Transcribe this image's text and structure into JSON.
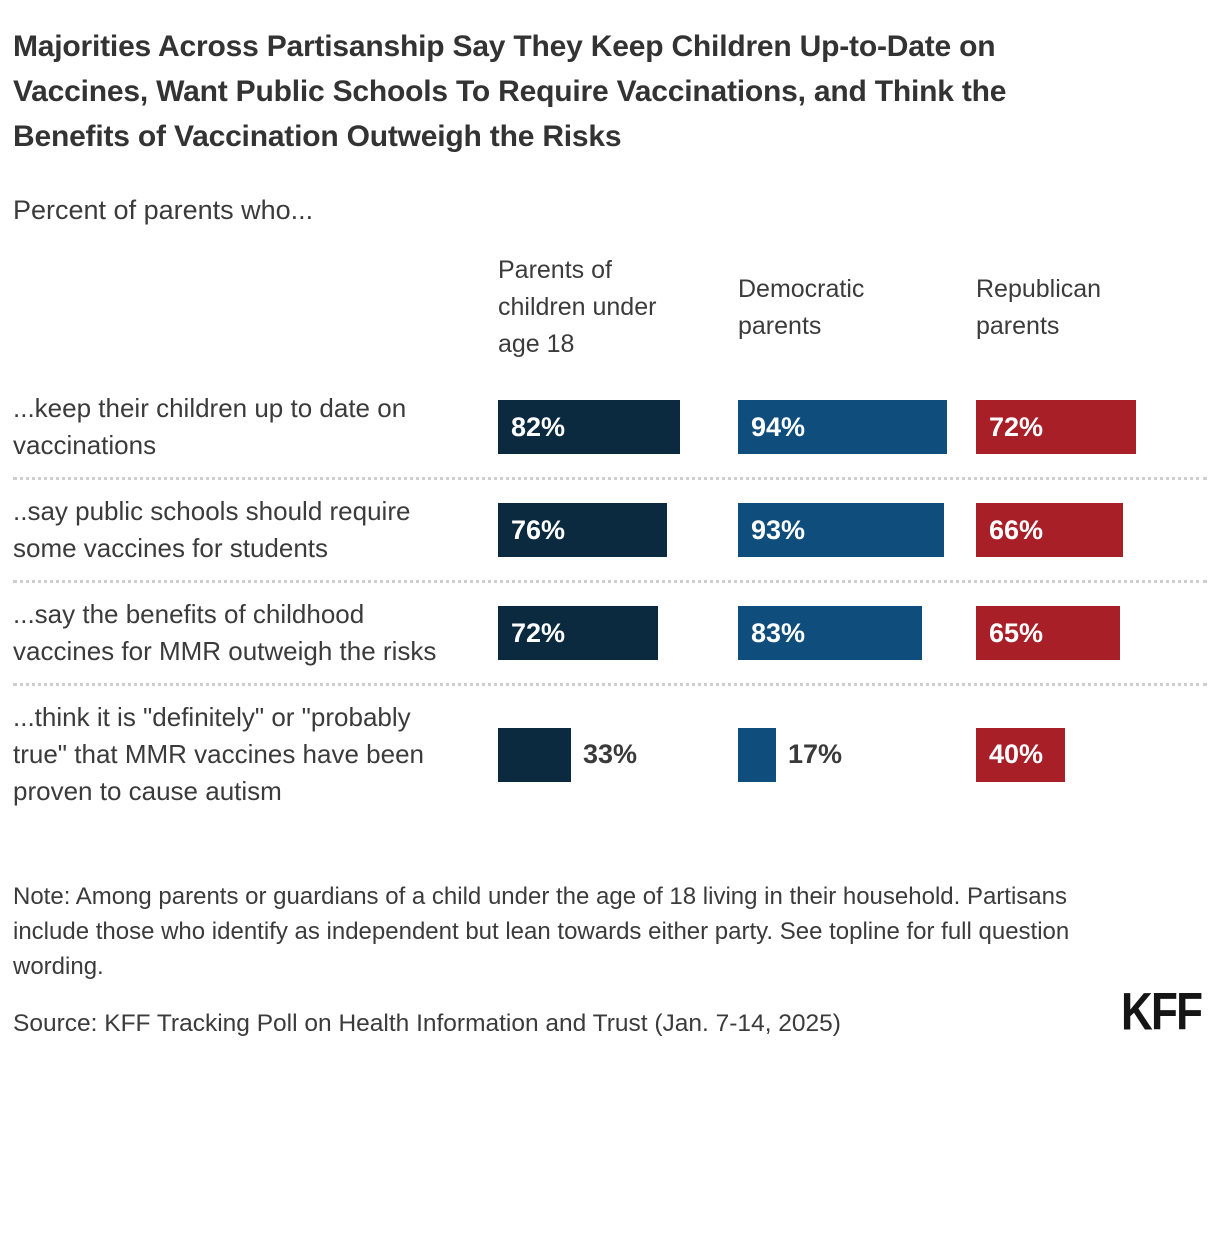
{
  "title": "Majorities Across Partisanship Say They Keep Children Up-to-Date on Vaccines, Want Public Schools To Require Vaccinations, and Think the Benefits of Vaccination Outweigh the Risks",
  "subtitle": "Percent of parents who...",
  "chart_data": {
    "type": "bar",
    "orientation": "horizontal",
    "value_suffix": "%",
    "xlim": [
      0,
      100
    ],
    "grid": false,
    "columns": [
      {
        "label": "Parents of children under age 18",
        "color": "#0b2a40"
      },
      {
        "label": "Democratic parents",
        "color": "#0f4d7c"
      },
      {
        "label": "Republican parents",
        "color": "#a91f28"
      }
    ],
    "rows": [
      {
        "label": "...keep their children up to date on vaccinations",
        "values": [
          82,
          94,
          72
        ],
        "labels_inside": [
          true,
          true,
          true
        ]
      },
      {
        "label": "..say public schools should require some vaccines for students",
        "values": [
          76,
          93,
          66
        ],
        "labels_inside": [
          true,
          true,
          true
        ]
      },
      {
        "label": "...say the benefits of childhood vaccines for MMR outweigh the risks",
        "values": [
          72,
          83,
          65
        ],
        "labels_inside": [
          true,
          true,
          true
        ]
      },
      {
        "label": "...think it is \"definitely\" or \"probably true\" that MMR vaccines have been proven to cause autism",
        "values": [
          33,
          17,
          40
        ],
        "labels_inside": [
          false,
          false,
          true
        ]
      }
    ]
  },
  "note": "Note: Among parents or guardians of a child under the age of 18 living in their household. Partisans include those who identify as independent but lean towards either party. See topline for full question wording.",
  "source": "Source: KFF Tracking Poll on Health Information and Trust (Jan. 7-14, 2025)",
  "logo_text": "KFF"
}
